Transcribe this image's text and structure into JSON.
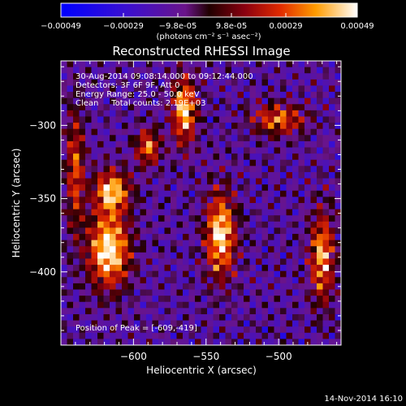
{
  "chart_data": {
    "type": "heatmap",
    "title": "Reconstructed RHESSI Image",
    "xlabel": "Heliocentric X (arcsec)",
    "ylabel": "Heliocentric Y (arcsec)",
    "xlim": [
      -650,
      -457
    ],
    "ylim": [
      -450,
      -256
    ],
    "x_ticks": [
      -600,
      -550,
      -500
    ],
    "y_ticks": [
      -300,
      -350,
      -400
    ],
    "colorbar": {
      "colormap": "blue-purple-red-yellow-white",
      "ticks": [
        "-0.00049",
        "-0.00029",
        "-9.8e-05",
        "9.8e-05",
        "0.00029",
        "0.00049"
      ],
      "unit_label": "(photons cm⁻² s⁻¹ asec⁻²)",
      "range": [
        -0.00049,
        0.00049
      ]
    },
    "annotations": [
      "30-Aug-2014 09:08:14.000 to 09:12:44.000",
      "Detectors: 3F 6F 9F, Att 0",
      "Energy Range: 25.0 - 50.0 keV",
      "Clean     Total counts: 2.19E+03"
    ],
    "peak_label": "Position of Peak = [-609,-419]",
    "peak": [
      -609,
      -419
    ],
    "grid_size": [
      46,
      46
    ],
    "emission_regions": [
      {
        "center": [
          -617,
          -385
        ],
        "extent": [
          14,
          25
        ],
        "intensity": 1.0
      },
      {
        "center": [
          -615,
          -345
        ],
        "extent": [
          12,
          14
        ],
        "intensity": 0.85
      },
      {
        "center": [
          -565,
          -290
        ],
        "extent": [
          8,
          22
        ],
        "intensity": 0.9
      },
      {
        "center": [
          -590,
          -315
        ],
        "extent": [
          8,
          12
        ],
        "intensity": 0.7
      },
      {
        "center": [
          -540,
          -375
        ],
        "extent": [
          10,
          28
        ],
        "intensity": 0.95
      },
      {
        "center": [
          -500,
          -296
        ],
        "extent": [
          18,
          10
        ],
        "intensity": 0.65
      },
      {
        "center": [
          -470,
          -390
        ],
        "extent": [
          8,
          30
        ],
        "intensity": 0.8
      },
      {
        "center": [
          -640,
          -330
        ],
        "extent": [
          6,
          40
        ],
        "intensity": 0.6
      }
    ],
    "colors": {
      "background": "#000000",
      "axes": "#ffffff",
      "text": "#ffffff"
    }
  },
  "footer_timestamp": "14-Nov-2014 16:10"
}
